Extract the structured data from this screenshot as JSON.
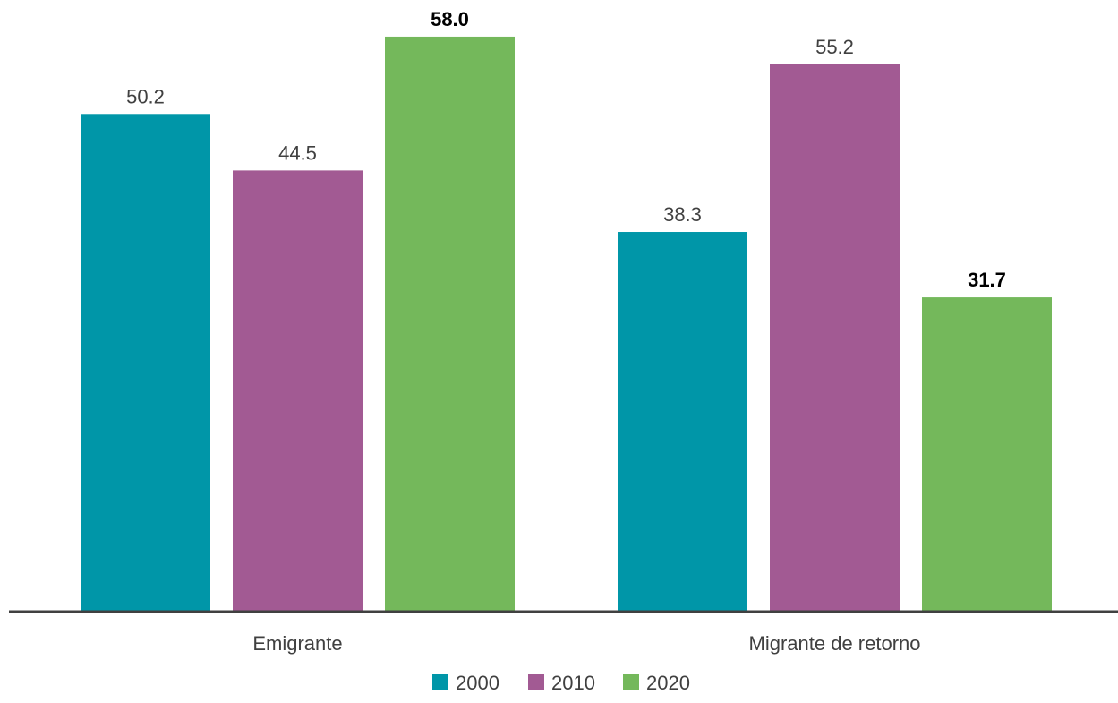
{
  "chart_data": {
    "type": "bar",
    "categories": [
      "Emigrante",
      "Migrante de retorno"
    ],
    "series": [
      {
        "name": "2000",
        "values": [
          50.2,
          38.3
        ],
        "color": "#0096A8"
      },
      {
        "name": "2010",
        "values": [
          44.5,
          55.2
        ],
        "color": "#A25A93"
      },
      {
        "name": "2020",
        "values": [
          58.0,
          31.7
        ],
        "color": "#74B85B"
      }
    ],
    "value_labels": [
      [
        "50.2",
        "38.3"
      ],
      [
        "44.5",
        "55.2"
      ],
      [
        "58.0",
        "31.7"
      ]
    ],
    "bold_series": [
      "2020"
    ],
    "ylim": [
      0,
      60
    ],
    "title": "",
    "xlabel": "",
    "ylabel": "",
    "grid": false,
    "legend_position": "bottom-center",
    "axis_color": "#404040"
  }
}
